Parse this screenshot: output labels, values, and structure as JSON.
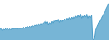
{
  "chart_data": {
    "type": "area",
    "values": [
      55,
      58,
      50,
      56,
      52,
      60,
      54,
      58,
      53,
      57,
      52,
      60,
      55,
      63,
      56,
      61,
      55,
      62,
      57,
      63,
      58,
      65,
      60,
      67,
      62,
      68,
      64,
      70,
      65,
      72,
      68,
      74,
      70,
      76,
      72,
      78,
      74,
      80,
      76,
      82,
      85,
      92,
      80,
      88,
      75,
      84,
      78,
      90,
      82,
      95,
      88,
      98,
      90,
      100,
      85,
      95,
      88,
      98,
      92,
      102,
      95,
      105,
      98,
      108,
      100,
      110,
      102,
      112,
      105,
      115,
      108,
      118,
      110,
      120,
      105,
      115,
      108,
      118,
      110,
      120,
      105,
      115,
      108,
      118,
      12,
      10,
      15,
      50,
      65,
      75,
      85,
      95,
      105,
      115,
      120,
      130,
      140,
      150,
      160,
      170
    ],
    "color": "#4a9cc8",
    "ylim": [
      8,
      185
    ],
    "tick_labels": false,
    "grid": false
  }
}
